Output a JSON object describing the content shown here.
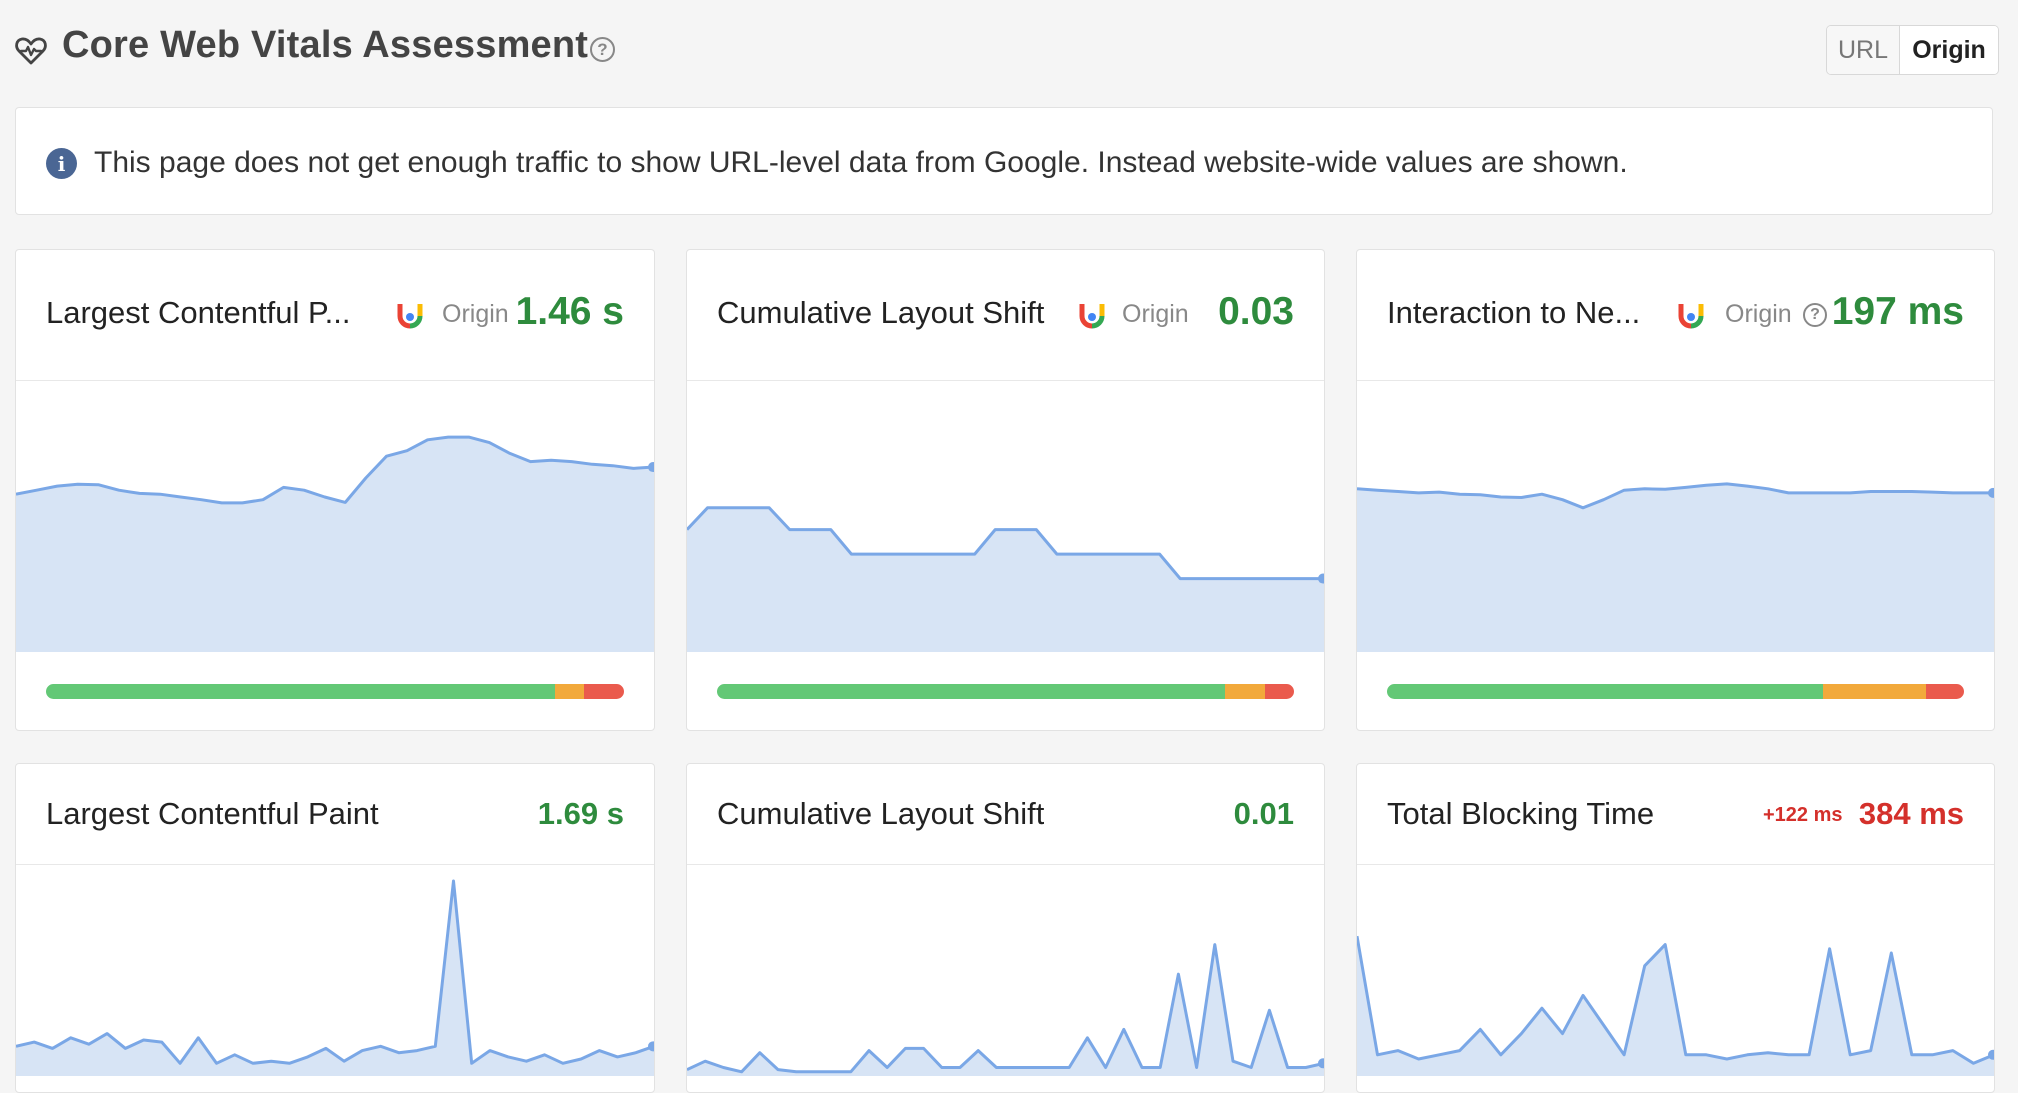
{
  "header": {
    "title": "Core Web Vitals Assessment",
    "help_icon": "help-circle-icon",
    "heart_icon": "heart-pulse-icon",
    "toggle": {
      "url_label": "URL",
      "origin_label": "Origin",
      "selected": "Origin"
    }
  },
  "notice": {
    "icon": "info-icon",
    "text": "This page does not get enough traffic to show URL-level data from Google. Instead website-wide values are shown."
  },
  "colors": {
    "good": "#2e8b3d",
    "poor": "#d4302b",
    "chart_line": "#7aa7e6",
    "chart_fill": "#d7e4f5",
    "bar_good": "#63c876",
    "bar_needs_improvement": "#f2a93b",
    "bar_poor": "#ea5a4d"
  },
  "crux_cards": [
    {
      "title": "Largest Contentful P...",
      "source_icon": "chrome-icon",
      "source_label": "Origin",
      "value": "1.46 s",
      "status": "good",
      "distribution": {
        "good": 0.88,
        "needs_improvement": 0.05,
        "poor": 0.07
      }
    },
    {
      "title": "Cumulative Layout Shift",
      "source_icon": "chrome-icon",
      "source_label": "Origin",
      "value": "0.03",
      "status": "good",
      "distribution": {
        "good": 0.88,
        "needs_improvement": 0.07,
        "poor": 0.05
      }
    },
    {
      "title": "Interaction to Ne...",
      "source_icon": "chrome-icon",
      "source_label": "Origin",
      "value": "197 ms",
      "status": "good",
      "distribution": {
        "good": 0.755,
        "needs_improvement": 0.18,
        "poor": 0.065
      }
    }
  ],
  "lab_cards": [
    {
      "title": "Largest Contentful Paint",
      "value": "1.69 s",
      "status": "good",
      "delta": ""
    },
    {
      "title": "Cumulative Layout Shift",
      "value": "0.01",
      "status": "good",
      "delta": ""
    },
    {
      "title": "Total Blocking Time",
      "value": "384 ms",
      "status": "bad",
      "delta": "+122 ms"
    }
  ],
  "chart_data": [
    {
      "type": "area",
      "title": "",
      "series": [
        {
          "values": [
            0.58,
            0.595,
            0.61,
            0.617,
            0.615,
            0.595,
            0.583,
            0.58,
            0.57,
            0.56,
            0.548,
            0.548,
            0.56,
            0.605,
            0.595,
            0.57,
            0.55,
            0.64,
            0.72,
            0.74,
            0.78,
            0.79,
            0.79,
            0.77,
            0.73,
            0.7,
            0.705,
            0.7,
            0.69,
            0.685,
            0.675,
            0.68
          ]
        }
      ],
      "ylim": [
        0,
        1
      ]
    },
    {
      "type": "area",
      "title": "",
      "series": [
        {
          "values": [
            0.45,
            0.53,
            0.53,
            0.53,
            0.53,
            0.45,
            0.45,
            0.45,
            0.36,
            0.36,
            0.36,
            0.36,
            0.36,
            0.36,
            0.36,
            0.45,
            0.45,
            0.45,
            0.36,
            0.36,
            0.36,
            0.36,
            0.36,
            0.36,
            0.27,
            0.27,
            0.27,
            0.27,
            0.27,
            0.27,
            0.27,
            0.27
          ]
        }
      ],
      "ylim": [
        0,
        1
      ]
    },
    {
      "type": "area",
      "title": "",
      "series": [
        {
          "values": [
            0.6,
            0.595,
            0.59,
            0.585,
            0.588,
            0.58,
            0.578,
            0.57,
            0.568,
            0.58,
            0.56,
            0.53,
            0.56,
            0.595,
            0.6,
            0.598,
            0.605,
            0.613,
            0.618,
            0.61,
            0.6,
            0.585,
            0.585,
            0.585,
            0.585,
            0.59,
            0.59,
            0.59,
            0.588,
            0.585,
            0.585,
            0.585
          ]
        }
      ],
      "ylim": [
        0,
        1
      ]
    },
    {
      "type": "area",
      "title": "",
      "series": [
        {
          "values": [
            0.14,
            0.16,
            0.13,
            0.18,
            0.15,
            0.2,
            0.13,
            0.17,
            0.16,
            0.06,
            0.18,
            0.06,
            0.1,
            0.06,
            0.07,
            0.06,
            0.09,
            0.13,
            0.07,
            0.12,
            0.14,
            0.11,
            0.12,
            0.14,
            0.92,
            0.06,
            0.12,
            0.09,
            0.07,
            0.1,
            0.06,
            0.08,
            0.12,
            0.09,
            0.11,
            0.14
          ]
        }
      ],
      "ylim": [
        0,
        1
      ]
    },
    {
      "type": "area",
      "title": "",
      "series": [
        {
          "values": [
            0.03,
            0.07,
            0.04,
            0.02,
            0.11,
            0.03,
            0.02,
            0.02,
            0.02,
            0.02,
            0.12,
            0.04,
            0.13,
            0.13,
            0.04,
            0.04,
            0.12,
            0.04,
            0.04,
            0.04,
            0.04,
            0.04,
            0.18,
            0.04,
            0.22,
            0.04,
            0.04,
            0.48,
            0.04,
            0.62,
            0.07,
            0.04,
            0.31,
            0.04,
            0.04,
            0.06
          ]
        }
      ],
      "ylim": [
        0,
        1
      ]
    },
    {
      "type": "area",
      "title": "",
      "series": [
        {
          "values": [
            0.66,
            0.1,
            0.12,
            0.08,
            0.1,
            0.12,
            0.22,
            0.1,
            0.2,
            0.32,
            0.2,
            0.38,
            0.24,
            0.1,
            0.52,
            0.62,
            0.1,
            0.1,
            0.08,
            0.1,
            0.11,
            0.1,
            0.1,
            0.6,
            0.1,
            0.12,
            0.58,
            0.1,
            0.1,
            0.12,
            0.06,
            0.1
          ]
        }
      ],
      "ylim": [
        0,
        1
      ]
    }
  ]
}
